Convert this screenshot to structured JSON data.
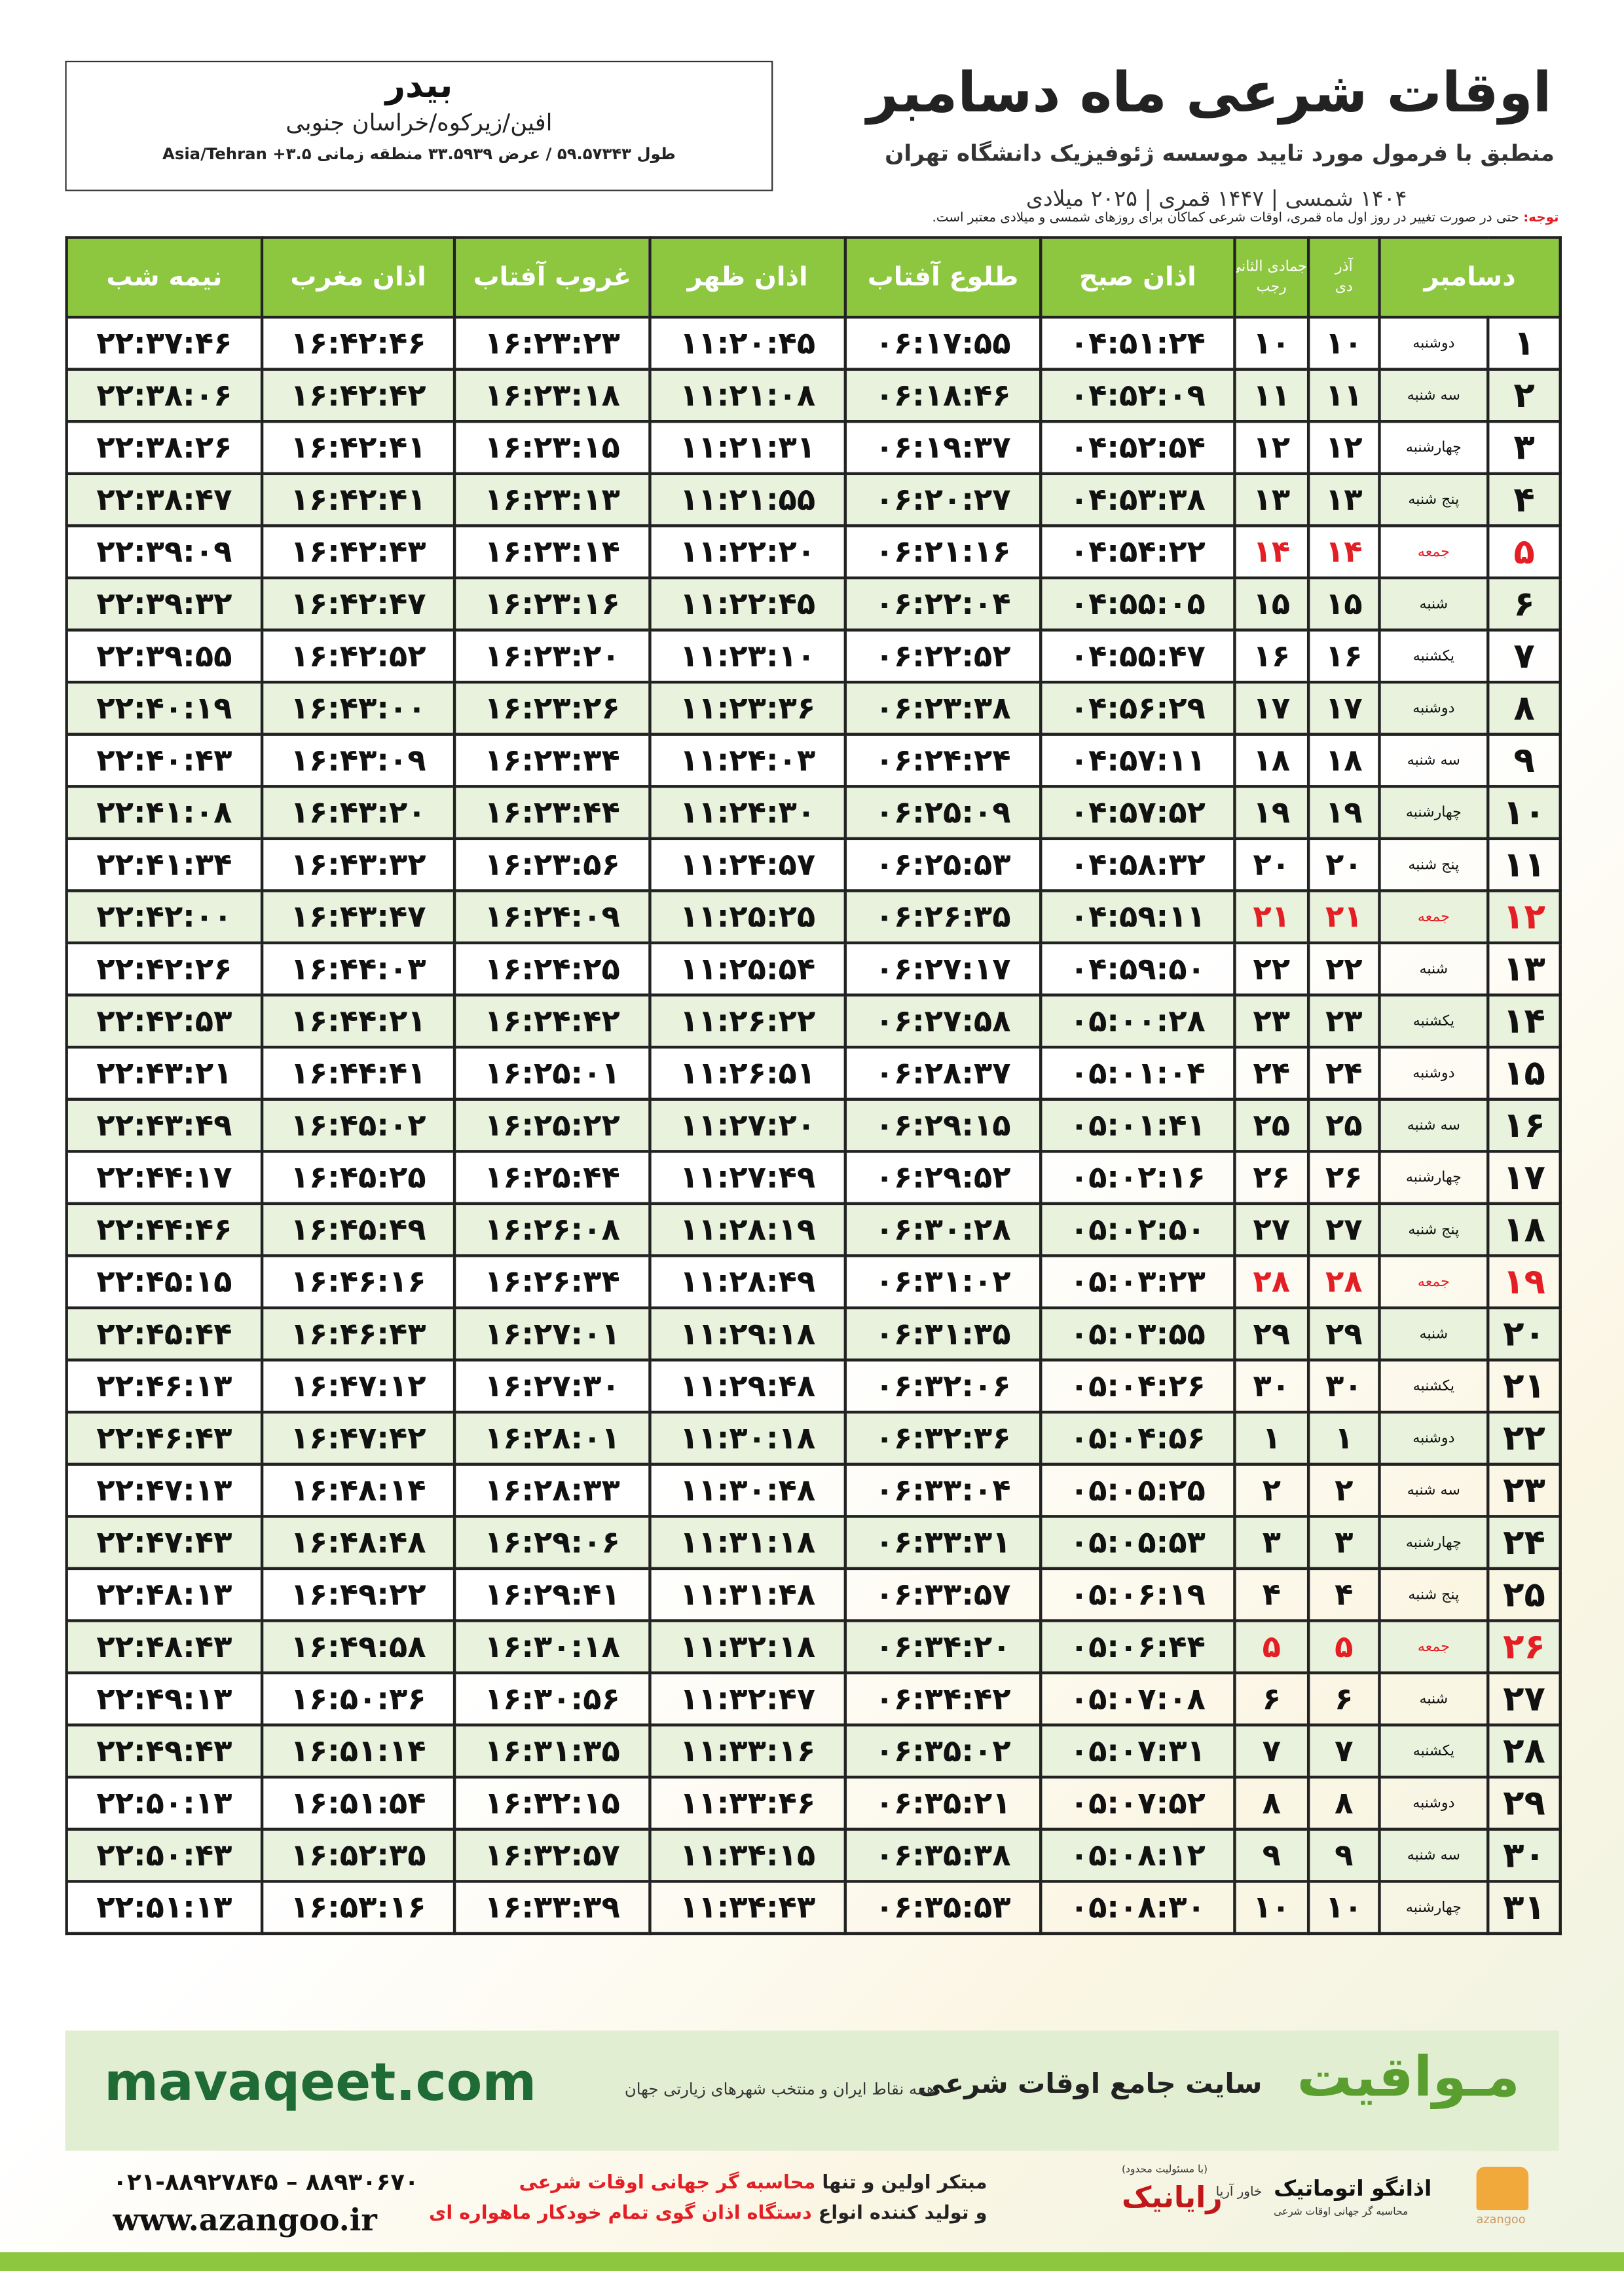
{
  "header": {
    "title": "اوقات شرعی ماه دسامبر",
    "subtitle": "منطبق با فرمول مورد تایید موسسه ژئوفیزیک دانشگاه تهران",
    "dates": "۱۴۰۴ شمسی | ۱۴۴۷ قمری | ۲۰۲۵ میلادی"
  },
  "location": {
    "city": "بیدر",
    "region": "افین/زیرکوه/خراسان جنوبی",
    "coords": "طول ۵۹.۵۷۳۴۳ / عرض ۳۳.۵۹۳۹ منطقه زمانی ۳.۵+ Asia/Tehran"
  },
  "note": {
    "label": "توجه:",
    "text": "حتی در صورت تغییر در روز اول ماه قمری، اوقات شرعی کماکان برای روزهای شمسی و میلادی معتبر است."
  },
  "table": {
    "highlight_color": "#e31e24",
    "header": {
      "month": "دسامبر",
      "solar": [
        "آذر",
        "دی"
      ],
      "hijri": [
        "جمادی الثانی",
        "رجب"
      ],
      "times": [
        "اذان صبح",
        "طلوع آفتاب",
        "اذان ظهر",
        "غروب آفتاب",
        "اذان مغرب",
        "نیمه شب"
      ]
    },
    "rows": [
      {
        "day": "۱",
        "weekday": "دوشنبه",
        "solar": "۱۰",
        "hijri": "۱۰",
        "times": [
          "۰۴:۵۱:۲۴",
          "۰۶:۱۷:۵۵",
          "۱۱:۲۰:۴۵",
          "۱۶:۲۳:۲۳",
          "۱۶:۴۲:۴۶",
          "۲۲:۳۷:۴۶"
        ]
      },
      {
        "day": "۲",
        "weekday": "سه شنبه",
        "solar": "۱۱",
        "hijri": "۱۱",
        "times": [
          "۰۴:۵۲:۰۹",
          "۰۶:۱۸:۴۶",
          "۱۱:۲۱:۰۸",
          "۱۶:۲۳:۱۸",
          "۱۶:۴۲:۴۲",
          "۲۲:۳۸:۰۶"
        ]
      },
      {
        "day": "۳",
        "weekday": "چهارشنبه",
        "solar": "۱۲",
        "hijri": "۱۲",
        "times": [
          "۰۴:۵۲:۵۴",
          "۰۶:۱۹:۳۷",
          "۱۱:۲۱:۳۱",
          "۱۶:۲۳:۱۵",
          "۱۶:۴۲:۴۱",
          "۲۲:۳۸:۲۶"
        ]
      },
      {
        "day": "۴",
        "weekday": "پنج شنبه",
        "solar": "۱۳",
        "hijri": "۱۳",
        "times": [
          "۰۴:۵۳:۳۸",
          "۰۶:۲۰:۲۷",
          "۱۱:۲۱:۵۵",
          "۱۶:۲۳:۱۳",
          "۱۶:۴۲:۴۱",
          "۲۲:۳۸:۴۷"
        ]
      },
      {
        "day": "۵",
        "weekday": "جمعه",
        "solar": "۱۴",
        "hijri": "۱۴",
        "holiday": true,
        "times": [
          "۰۴:۵۴:۲۲",
          "۰۶:۲۱:۱۶",
          "۱۱:۲۲:۲۰",
          "۱۶:۲۳:۱۴",
          "۱۶:۴۲:۴۳",
          "۲۲:۳۹:۰۹"
        ]
      },
      {
        "day": "۶",
        "weekday": "شنبه",
        "solar": "۱۵",
        "hijri": "۱۵",
        "times": [
          "۰۴:۵۵:۰۵",
          "۰۶:۲۲:۰۴",
          "۱۱:۲۲:۴۵",
          "۱۶:۲۳:۱۶",
          "۱۶:۴۲:۴۷",
          "۲۲:۳۹:۳۲"
        ]
      },
      {
        "day": "۷",
        "weekday": "یکشنبه",
        "solar": "۱۶",
        "hijri": "۱۶",
        "times": [
          "۰۴:۵۵:۴۷",
          "۰۶:۲۲:۵۲",
          "۱۱:۲۳:۱۰",
          "۱۶:۲۳:۲۰",
          "۱۶:۴۲:۵۲",
          "۲۲:۳۹:۵۵"
        ]
      },
      {
        "day": "۸",
        "weekday": "دوشنبه",
        "solar": "۱۷",
        "hijri": "۱۷",
        "times": [
          "۰۴:۵۶:۲۹",
          "۰۶:۲۳:۳۸",
          "۱۱:۲۳:۳۶",
          "۱۶:۲۳:۲۶",
          "۱۶:۴۳:۰۰",
          "۲۲:۴۰:۱۹"
        ]
      },
      {
        "day": "۹",
        "weekday": "سه شنبه",
        "solar": "۱۸",
        "hijri": "۱۸",
        "times": [
          "۰۴:۵۷:۱۱",
          "۰۶:۲۴:۲۴",
          "۱۱:۲۴:۰۳",
          "۱۶:۲۳:۳۴",
          "۱۶:۴۳:۰۹",
          "۲۲:۴۰:۴۳"
        ]
      },
      {
        "day": "۱۰",
        "weekday": "چهارشنبه",
        "solar": "۱۹",
        "hijri": "۱۹",
        "times": [
          "۰۴:۵۷:۵۲",
          "۰۶:۲۵:۰۹",
          "۱۱:۲۴:۳۰",
          "۱۶:۲۳:۴۴",
          "۱۶:۴۳:۲۰",
          "۲۲:۴۱:۰۸"
        ]
      },
      {
        "day": "۱۱",
        "weekday": "پنج شنبه",
        "solar": "۲۰",
        "hijri": "۲۰",
        "times": [
          "۰۴:۵۸:۳۲",
          "۰۶:۲۵:۵۳",
          "۱۱:۲۴:۵۷",
          "۱۶:۲۳:۵۶",
          "۱۶:۴۳:۳۲",
          "۲۲:۴۱:۳۴"
        ]
      },
      {
        "day": "۱۲",
        "weekday": "جمعه",
        "solar": "۲۱",
        "hijri": "۲۱",
        "holiday": true,
        "times": [
          "۰۴:۵۹:۱۱",
          "۰۶:۲۶:۳۵",
          "۱۱:۲۵:۲۵",
          "۱۶:۲۴:۰۹",
          "۱۶:۴۳:۴۷",
          "۲۲:۴۲:۰۰"
        ]
      },
      {
        "day": "۱۳",
        "weekday": "شنبه",
        "solar": "۲۲",
        "hijri": "۲۲",
        "times": [
          "۰۴:۵۹:۵۰",
          "۰۶:۲۷:۱۷",
          "۱۱:۲۵:۵۴",
          "۱۶:۲۴:۲۵",
          "۱۶:۴۴:۰۳",
          "۲۲:۴۲:۲۶"
        ]
      },
      {
        "day": "۱۴",
        "weekday": "یکشنبه",
        "solar": "۲۳",
        "hijri": "۲۳",
        "times": [
          "۰۵:۰۰:۲۸",
          "۰۶:۲۷:۵۸",
          "۱۱:۲۶:۲۲",
          "۱۶:۲۴:۴۲",
          "۱۶:۴۴:۲۱",
          "۲۲:۴۲:۵۳"
        ]
      },
      {
        "day": "۱۵",
        "weekday": "دوشنبه",
        "solar": "۲۴",
        "hijri": "۲۴",
        "times": [
          "۰۵:۰۱:۰۴",
          "۰۶:۲۸:۳۷",
          "۱۱:۲۶:۵۱",
          "۱۶:۲۵:۰۱",
          "۱۶:۴۴:۴۱",
          "۲۲:۴۳:۲۱"
        ]
      },
      {
        "day": "۱۶",
        "weekday": "سه شنبه",
        "solar": "۲۵",
        "hijri": "۲۵",
        "times": [
          "۰۵:۰۱:۴۱",
          "۰۶:۲۹:۱۵",
          "۱۱:۲۷:۲۰",
          "۱۶:۲۵:۲۲",
          "۱۶:۴۵:۰۲",
          "۲۲:۴۳:۴۹"
        ]
      },
      {
        "day": "۱۷",
        "weekday": "چهارشنبه",
        "solar": "۲۶",
        "hijri": "۲۶",
        "times": [
          "۰۵:۰۲:۱۶",
          "۰۶:۲۹:۵۲",
          "۱۱:۲۷:۴۹",
          "۱۶:۲۵:۴۴",
          "۱۶:۴۵:۲۵",
          "۲۲:۴۴:۱۷"
        ]
      },
      {
        "day": "۱۸",
        "weekday": "پنج شنبه",
        "solar": "۲۷",
        "hijri": "۲۷",
        "times": [
          "۰۵:۰۲:۵۰",
          "۰۶:۳۰:۲۸",
          "۱۱:۲۸:۱۹",
          "۱۶:۲۶:۰۸",
          "۱۶:۴۵:۴۹",
          "۲۲:۴۴:۴۶"
        ]
      },
      {
        "day": "۱۹",
        "weekday": "جمعه",
        "solar": "۲۸",
        "hijri": "۲۸",
        "holiday": true,
        "times": [
          "۰۵:۰۳:۲۳",
          "۰۶:۳۱:۰۲",
          "۱۱:۲۸:۴۹",
          "۱۶:۲۶:۳۴",
          "۱۶:۴۶:۱۶",
          "۲۲:۴۵:۱۵"
        ]
      },
      {
        "day": "۲۰",
        "weekday": "شنبه",
        "solar": "۲۹",
        "hijri": "۲۹",
        "times": [
          "۰۵:۰۳:۵۵",
          "۰۶:۳۱:۳۵",
          "۱۱:۲۹:۱۸",
          "۱۶:۲۷:۰۱",
          "۱۶:۴۶:۴۳",
          "۲۲:۴۵:۴۴"
        ]
      },
      {
        "day": "۲۱",
        "weekday": "یکشنبه",
        "solar": "۳۰",
        "hijri": "۳۰",
        "times": [
          "۰۵:۰۴:۲۶",
          "۰۶:۳۲:۰۶",
          "۱۱:۲۹:۴۸",
          "۱۶:۲۷:۳۰",
          "۱۶:۴۷:۱۲",
          "۲۲:۴۶:۱۳"
        ]
      },
      {
        "day": "۲۲",
        "weekday": "دوشنبه",
        "solar": "۱",
        "hijri": "۱",
        "times": [
          "۰۵:۰۴:۵۶",
          "۰۶:۳۲:۳۶",
          "۱۱:۳۰:۱۸",
          "۱۶:۲۸:۰۱",
          "۱۶:۴۷:۴۲",
          "۲۲:۴۶:۴۳"
        ]
      },
      {
        "day": "۲۳",
        "weekday": "سه شنبه",
        "solar": "۲",
        "hijri": "۲",
        "times": [
          "۰۵:۰۵:۲۵",
          "۰۶:۳۳:۰۴",
          "۱۱:۳۰:۴۸",
          "۱۶:۲۸:۳۳",
          "۱۶:۴۸:۱۴",
          "۲۲:۴۷:۱۳"
        ]
      },
      {
        "day": "۲۴",
        "weekday": "چهارشنبه",
        "solar": "۳",
        "hijri": "۳",
        "times": [
          "۰۵:۰۵:۵۳",
          "۰۶:۳۳:۳۱",
          "۱۱:۳۱:۱۸",
          "۱۶:۲۹:۰۶",
          "۱۶:۴۸:۴۸",
          "۲۲:۴۷:۴۳"
        ]
      },
      {
        "day": "۲۵",
        "weekday": "پنج شنبه",
        "solar": "۴",
        "hijri": "۴",
        "times": [
          "۰۵:۰۶:۱۹",
          "۰۶:۳۳:۵۷",
          "۱۱:۳۱:۴۸",
          "۱۶:۲۹:۴۱",
          "۱۶:۴۹:۲۲",
          "۲۲:۴۸:۱۳"
        ]
      },
      {
        "day": "۲۶",
        "weekday": "جمعه",
        "solar": "۵",
        "hijri": "۵",
        "holiday": true,
        "times": [
          "۰۵:۰۶:۴۴",
          "۰۶:۳۴:۲۰",
          "۱۱:۳۲:۱۸",
          "۱۶:۳۰:۱۸",
          "۱۶:۴۹:۵۸",
          "۲۲:۴۸:۴۳"
        ]
      },
      {
        "day": "۲۷",
        "weekday": "شنبه",
        "solar": "۶",
        "hijri": "۶",
        "times": [
          "۰۵:۰۷:۰۸",
          "۰۶:۳۴:۴۲",
          "۱۱:۳۲:۴۷",
          "۱۶:۳۰:۵۶",
          "۱۶:۵۰:۳۶",
          "۲۲:۴۹:۱۳"
        ]
      },
      {
        "day": "۲۸",
        "weekday": "یکشنبه",
        "solar": "۷",
        "hijri": "۷",
        "times": [
          "۰۵:۰۷:۳۱",
          "۰۶:۳۵:۰۲",
          "۱۱:۳۳:۱۶",
          "۱۶:۳۱:۳۵",
          "۱۶:۵۱:۱۴",
          "۲۲:۴۹:۴۳"
        ]
      },
      {
        "day": "۲۹",
        "weekday": "دوشنبه",
        "solar": "۸",
        "hijri": "۸",
        "times": [
          "۰۵:۰۷:۵۲",
          "۰۶:۳۵:۲۱",
          "۱۱:۳۳:۴۶",
          "۱۶:۳۲:۱۵",
          "۱۶:۵۱:۵۴",
          "۲۲:۵۰:۱۳"
        ]
      },
      {
        "day": "۳۰",
        "weekday": "سه شنبه",
        "solar": "۹",
        "hijri": "۹",
        "times": [
          "۰۵:۰۸:۱۲",
          "۰۶:۳۵:۳۸",
          "۱۱:۳۴:۱۵",
          "۱۶:۳۲:۵۷",
          "۱۶:۵۲:۳۵",
          "۲۲:۵۰:۴۳"
        ]
      },
      {
        "day": "۳۱",
        "weekday": "چهارشنبه",
        "solar": "۱۰",
        "hijri": "۱۰",
        "times": [
          "۰۵:۰۸:۳۰",
          "۰۶:۳۵:۵۳",
          "۱۱:۳۴:۴۳",
          "۱۶:۳۳:۳۹",
          "۱۶:۵۳:۱۶",
          "۲۲:۵۱:۱۳"
        ]
      }
    ]
  },
  "banner": {
    "site": "mavaqeet.com",
    "brand": "مـواقیت",
    "slogan": "سایت جامع اوقات شرعی",
    "slogan_detail": "همه نقاط ایران و منتخب شهرهای زیارتی جهان"
  },
  "footer": {
    "phones": "۰۲۱-۸۸۹۲۷۸۴۵ – ۸۸۹۳۰۶۷۰",
    "website": "www.azangoo.ir",
    "line1": [
      "مبتکر اولین و تنها",
      "محاسبه گر جهانی اوقات شرعی"
    ],
    "line2": [
      "و تولید کننده انواع",
      "دستگاه اذان گوی تمام خودکار ماهواره ای"
    ],
    "rayanik": "رایانیک",
    "rayanik_note": "(با مسئولیت محدود)",
    "khavar": "خاور آریا",
    "azangoo": "اذانگو اتوماتیک",
    "azangoo_note": "محاسبه گر جهانی اوقات شرعی",
    "azangoo_latin": "azangoo"
  }
}
